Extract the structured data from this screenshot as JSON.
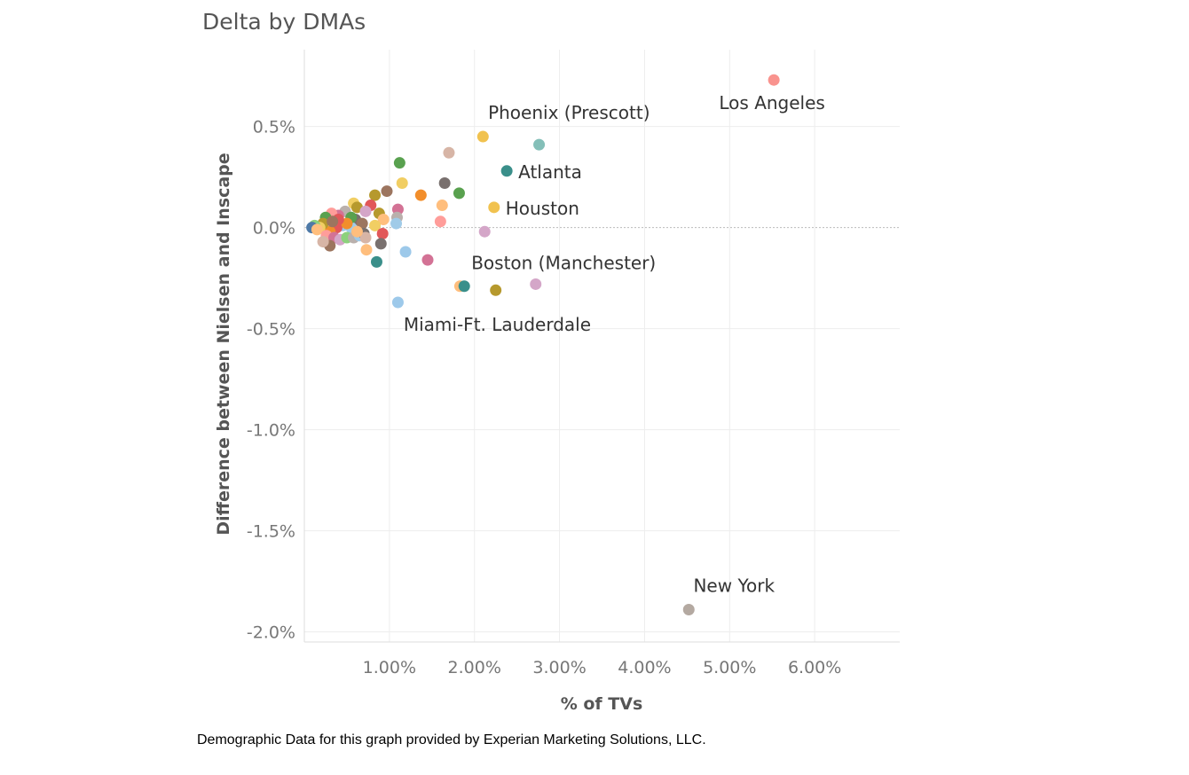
{
  "footer": "Demographic Data for this graph provided by Experian Marketing Solutions, LLC.",
  "chart_data": {
    "type": "scatter",
    "title": "Delta by DMAs",
    "xlabel": "% of TVs",
    "ylabel": "Difference between Nielsen and Inscape",
    "xlim": [
      0.0,
      7.0
    ],
    "ylim": [
      -2.05,
      0.88
    ],
    "x_ticks": [
      {
        "value": 1.0,
        "label": "1.00%"
      },
      {
        "value": 2.0,
        "label": "2.00%"
      },
      {
        "value": 3.0,
        "label": "3.00%"
      },
      {
        "value": 4.0,
        "label": "4.00%"
      },
      {
        "value": 5.0,
        "label": "5.00%"
      },
      {
        "value": 6.0,
        "label": "6.00%"
      }
    ],
    "y_ticks": [
      {
        "value": 0.5,
        "label": "0.5%"
      },
      {
        "value": 0.0,
        "label": "0.0%"
      },
      {
        "value": -0.5,
        "label": "-0.5%"
      },
      {
        "value": -1.0,
        "label": "-1.0%"
      },
      {
        "value": -1.5,
        "label": "-1.5%"
      },
      {
        "value": -2.0,
        "label": "-2.0%"
      }
    ],
    "grid": true,
    "legend": "none",
    "labeled_points": [
      {
        "name": "Los Angeles",
        "x": 5.52,
        "y": 0.73,
        "color": "#f9938e"
      },
      {
        "name": "Phoenix (Prescott)",
        "x": 2.1,
        "y": 0.45,
        "color": "#f1c24f"
      },
      {
        "name": "Atlanta",
        "x": 2.38,
        "y": 0.28,
        "color": "#3a8f8a"
      },
      {
        "name": "Houston",
        "x": 2.23,
        "y": 0.1,
        "color": "#f1c24f"
      },
      {
        "name": "Boston (Manchester)",
        "x": 1.88,
        "y": -0.29,
        "color": "#3a8f8a"
      },
      {
        "name": "Miami-Ft. Lauderdale",
        "x": 1.1,
        "y": -0.37,
        "color": "#9dc9ea"
      },
      {
        "name": "New York",
        "x": 4.52,
        "y": -1.89,
        "color": "#b4a9a1"
      }
    ],
    "points": [
      {
        "x": 2.76,
        "y": 0.41,
        "color": "#84bfb8"
      },
      {
        "x": 1.7,
        "y": 0.37,
        "color": "#d7b5a6"
      },
      {
        "x": 1.12,
        "y": 0.32,
        "color": "#59a14f"
      },
      {
        "x": 1.65,
        "y": 0.22,
        "color": "#79706e"
      },
      {
        "x": 1.15,
        "y": 0.22,
        "color": "#f1ce63"
      },
      {
        "x": 1.82,
        "y": 0.17,
        "color": "#59a14f"
      },
      {
        "x": 1.37,
        "y": 0.16,
        "color": "#f28e2b"
      },
      {
        "x": 0.97,
        "y": 0.18,
        "color": "#9c755f"
      },
      {
        "x": 0.83,
        "y": 0.16,
        "color": "#b6992d"
      },
      {
        "x": 0.78,
        "y": 0.11,
        "color": "#e15759"
      },
      {
        "x": 1.62,
        "y": 0.11,
        "color": "#ffbe7d"
      },
      {
        "x": 1.6,
        "y": 0.03,
        "color": "#ff9d9a"
      },
      {
        "x": 1.1,
        "y": 0.09,
        "color": "#d37295"
      },
      {
        "x": 1.09,
        "y": 0.05,
        "color": "#bab0ac"
      },
      {
        "x": 1.08,
        "y": 0.02,
        "color": "#a0cbe8"
      },
      {
        "x": 0.88,
        "y": 0.07,
        "color": "#b6992d"
      },
      {
        "x": 0.93,
        "y": 0.04,
        "color": "#ffbe7d"
      },
      {
        "x": 0.83,
        "y": 0.01,
        "color": "#f1ce63"
      },
      {
        "x": 0.92,
        "y": -0.03,
        "color": "#e15759"
      },
      {
        "x": 0.9,
        "y": -0.08,
        "color": "#79706e"
      },
      {
        "x": 0.73,
        "y": -0.11,
        "color": "#ffbe7d"
      },
      {
        "x": 0.85,
        "y": -0.17,
        "color": "#3a8f8a"
      },
      {
        "x": 1.19,
        "y": -0.12,
        "color": "#9dc9ea"
      },
      {
        "x": 1.45,
        "y": -0.16,
        "color": "#d37295"
      },
      {
        "x": 2.12,
        "y": -0.02,
        "color": "#d4a6c8"
      },
      {
        "x": 1.83,
        "y": -0.29,
        "color": "#ffbe7d"
      },
      {
        "x": 2.25,
        "y": -0.31,
        "color": "#b6992d"
      },
      {
        "x": 2.72,
        "y": -0.28,
        "color": "#d4a6c8"
      },
      {
        "x": 0.58,
        "y": 0.12,
        "color": "#f1ce63"
      },
      {
        "x": 0.62,
        "y": 0.1,
        "color": "#b6992d"
      },
      {
        "x": 0.48,
        "y": 0.08,
        "color": "#bab0ac"
      },
      {
        "x": 0.4,
        "y": 0.06,
        "color": "#d37295"
      },
      {
        "x": 0.32,
        "y": 0.07,
        "color": "#ff9d9a"
      },
      {
        "x": 0.25,
        "y": 0.05,
        "color": "#59a14f"
      },
      {
        "x": 0.6,
        "y": 0.04,
        "color": "#79706e"
      },
      {
        "x": 0.68,
        "y": 0.02,
        "color": "#9c755f"
      },
      {
        "x": 0.72,
        "y": 0.08,
        "color": "#d4a6c8"
      },
      {
        "x": 0.55,
        "y": 0.0,
        "color": "#a0cbe8"
      },
      {
        "x": 0.45,
        "y": 0.01,
        "color": "#9dc9ea"
      },
      {
        "x": 0.38,
        "y": 0.0,
        "color": "#e15759"
      },
      {
        "x": 0.3,
        "y": -0.02,
        "color": "#f28e2b"
      },
      {
        "x": 0.22,
        "y": 0.02,
        "color": "#b6992d"
      },
      {
        "x": 0.18,
        "y": 0.0,
        "color": "#f1ce63"
      },
      {
        "x": 0.12,
        "y": 0.01,
        "color": "#8cd17d"
      },
      {
        "x": 0.09,
        "y": 0.0,
        "color": "#4e79a7"
      },
      {
        "x": 0.15,
        "y": -0.01,
        "color": "#ffbe7d"
      },
      {
        "x": 0.26,
        "y": -0.04,
        "color": "#ff9d9a"
      },
      {
        "x": 0.35,
        "y": -0.05,
        "color": "#d37295"
      },
      {
        "x": 0.42,
        "y": -0.06,
        "color": "#d4a6c8"
      },
      {
        "x": 0.5,
        "y": -0.05,
        "color": "#8cd17d"
      },
      {
        "x": 0.58,
        "y": -0.05,
        "color": "#bab0ac"
      },
      {
        "x": 0.65,
        "y": -0.04,
        "color": "#9dc9ea"
      },
      {
        "x": 0.7,
        "y": -0.03,
        "color": "#79706e"
      },
      {
        "x": 0.72,
        "y": -0.05,
        "color": "#d7b5a6"
      },
      {
        "x": 0.3,
        "y": -0.09,
        "color": "#9c755f"
      },
      {
        "x": 0.22,
        "y": -0.07,
        "color": "#d7b5a6"
      },
      {
        "x": 0.62,
        "y": -0.02,
        "color": "#ffbe7d"
      },
      {
        "x": 0.55,
        "y": 0.05,
        "color": "#59a14f"
      },
      {
        "x": 0.5,
        "y": 0.02,
        "color": "#f28e2b"
      },
      {
        "x": 0.4,
        "y": 0.04,
        "color": "#e15759"
      },
      {
        "x": 0.33,
        "y": 0.03,
        "color": "#9c755f"
      }
    ]
  }
}
